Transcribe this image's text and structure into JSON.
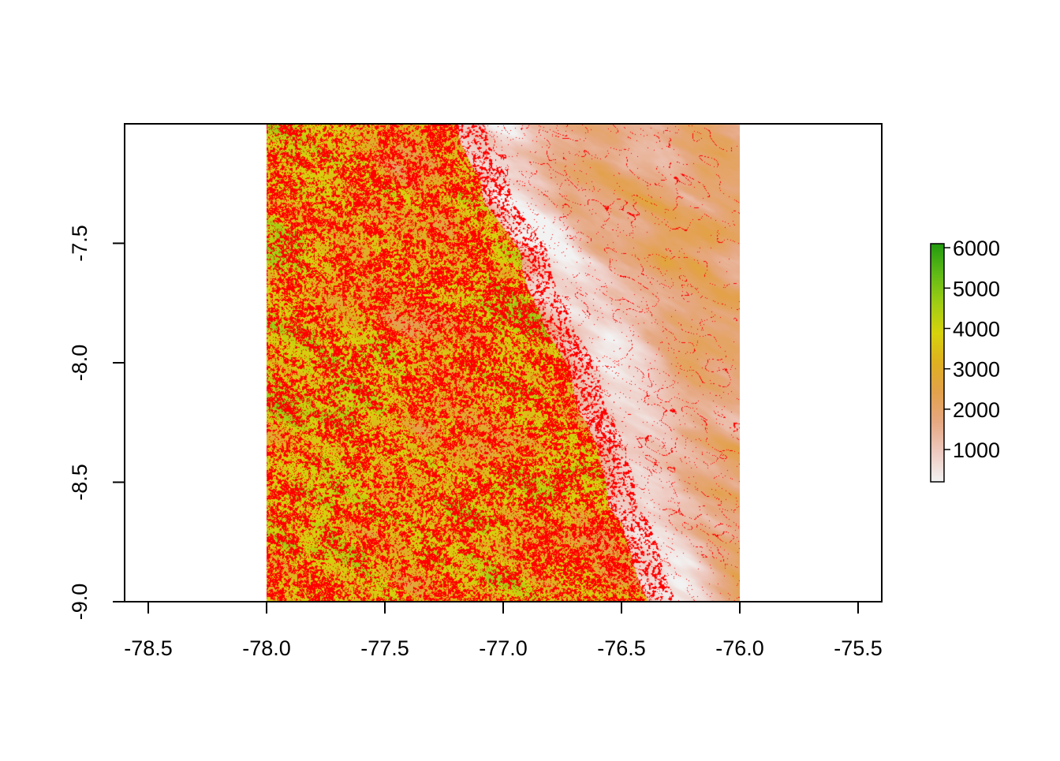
{
  "chart_data": {
    "type": "heatmap",
    "title": "",
    "xlabel": "",
    "ylabel": "",
    "xlim": [
      -78.6,
      -75.4
    ],
    "ylim": [
      -9.0,
      -7.0
    ],
    "raster_extent": {
      "xmin": -78.0,
      "xmax": -76.0,
      "ymin": -9.0,
      "ymax": -7.0
    },
    "x_ticks": [
      -78.5,
      -78.0,
      -77.5,
      -77.0,
      -76.5,
      -76.0,
      -75.5
    ],
    "x_tick_labels": [
      "-78.5",
      "-78.0",
      "-77.5",
      "-77.0",
      "-76.5",
      "-76.0",
      "-75.5"
    ],
    "y_ticks": [
      -7.5,
      -8.0,
      -8.5,
      -9.0
    ],
    "y_tick_labels": [
      "-7.5",
      "-8.0",
      "-8.5",
      "-9.0"
    ],
    "legend": {
      "placement": "right",
      "min": 200,
      "max": 6100,
      "ticks": [
        1000,
        2000,
        3000,
        4000,
        5000,
        6000
      ],
      "tick_labels": [
        "1000",
        "2000",
        "3000",
        "4000",
        "5000",
        "6000"
      ],
      "colors": [
        "#f2f2f2",
        "#eec9c0",
        "#e6a882",
        "#e3a14c",
        "#dfb020",
        "#d6d20c",
        "#9fcd14",
        "#5fba16",
        "#229a0e"
      ]
    },
    "overlay_color": "#ff0000",
    "description_values": {
      "west_zone_range": [
        2500,
        5000
      ],
      "east_zone_range": [
        400,
        2200
      ]
    }
  }
}
